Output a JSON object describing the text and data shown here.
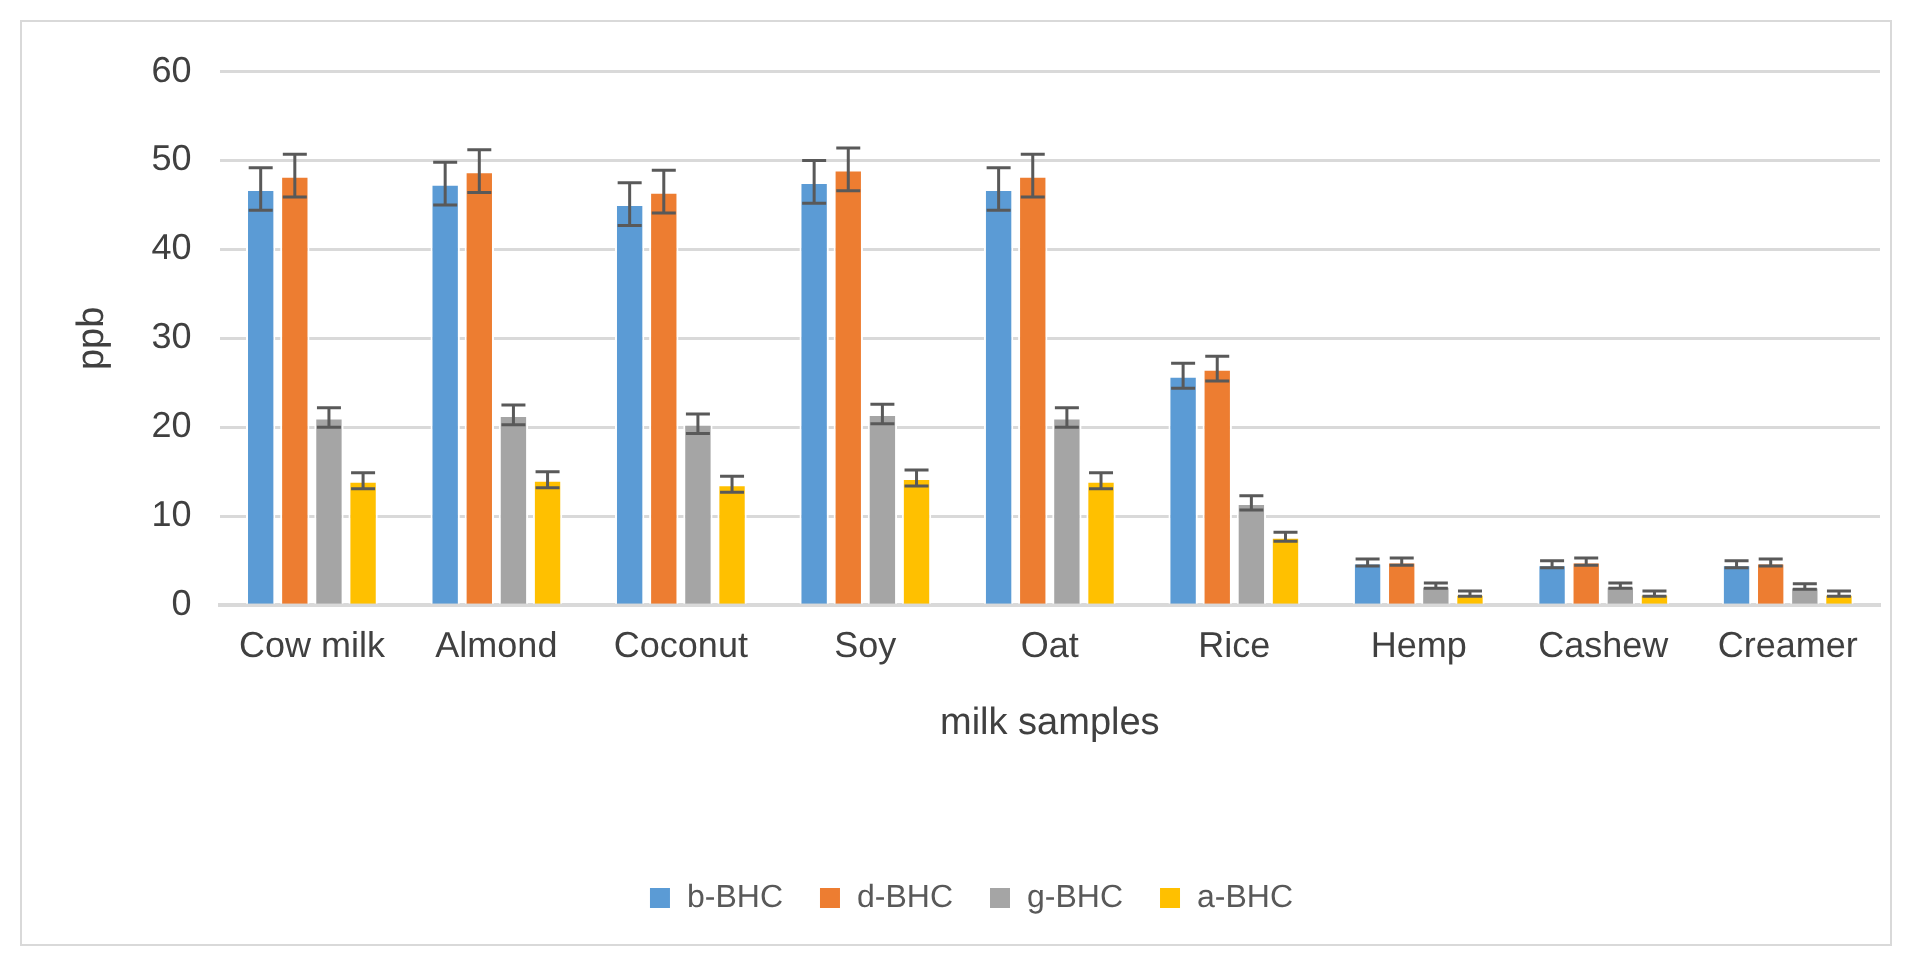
{
  "chart_data": {
    "type": "bar",
    "xlabel": "milk samples",
    "ylabel": "ppb",
    "categories": [
      "Cow milk",
      "Almond",
      "Coconut",
      "Soy",
      "Oat",
      "Rice",
      "Hemp",
      "Cashew",
      "Creamer"
    ],
    "series": [
      {
        "name": "b-BHC",
        "color": "#5b9bd5",
        "values": [
          46.8,
          47.4,
          45.1,
          47.6,
          46.8,
          25.8,
          4.8,
          4.6,
          4.6
        ],
        "errors": [
          2.4,
          2.4,
          2.4,
          2.4,
          2.4,
          1.4,
          0.4,
          0.4,
          0.4
        ]
      },
      {
        "name": "d-BHC",
        "color": "#ed7d31",
        "values": [
          48.3,
          48.8,
          46.5,
          49.0,
          48.3,
          26.6,
          4.9,
          4.9,
          4.8
        ],
        "errors": [
          2.4,
          2.4,
          2.4,
          2.4,
          2.4,
          1.4,
          0.4,
          0.4,
          0.4
        ]
      },
      {
        "name": "g-BHC",
        "color": "#a5a5a5",
        "values": [
          21.1,
          21.4,
          20.4,
          21.5,
          21.1,
          11.5,
          2.2,
          2.2,
          2.1
        ],
        "errors": [
          1.1,
          1.1,
          1.1,
          1.1,
          1.1,
          0.8,
          0.3,
          0.3,
          0.3
        ]
      },
      {
        "name": "a-BHC",
        "color": "#ffc000",
        "values": [
          14.0,
          14.1,
          13.6,
          14.3,
          14.0,
          7.7,
          1.3,
          1.3,
          1.3
        ],
        "errors": [
          0.9,
          0.9,
          0.9,
          0.9,
          0.9,
          0.5,
          0.3,
          0.3,
          0.3
        ]
      }
    ],
    "ylim": [
      0,
      60
    ],
    "yticks": [
      0,
      10,
      20,
      30,
      40,
      50,
      60
    ],
    "grid": "y",
    "legend": "bottom"
  }
}
